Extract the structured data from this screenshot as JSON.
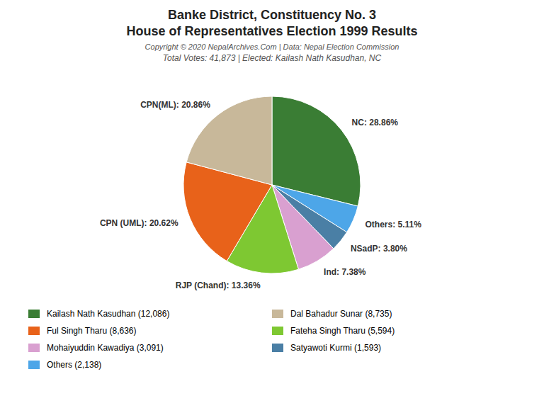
{
  "chart_data": {
    "type": "pie",
    "title": [
      "Banke District, Constituency No. 3",
      "House of Representatives Election 1999 Results"
    ],
    "annotations": [
      "Copyright © 2020 NepalArchives.Com | Data: Nepal Election Commission"
    ],
    "subtitle": "Total Votes: 41,873 | Elected: Kailash Nath Kasudhan, NC",
    "values": [
      28.86,
      5.11,
      3.8,
      7.38,
      13.36,
      20.62,
      20.86
    ],
    "value_labels": [
      "NC: 28.86%",
      "Others: 5.11%",
      "NSadP: 3.80%",
      "Ind: 7.38%",
      "RJP (Chand): 13.36%",
      "CPN (UML): 20.62%",
      "CPN(ML): 20.86%"
    ],
    "colors": [
      "#3a7d34",
      "#4da6e8",
      "#4a7fa5",
      "#d9a0d0",
      "#7ec832",
      "#e8621a",
      "#c8b89a"
    ],
    "data_labels": true,
    "legend": "bottom",
    "legend_entries": [
      {
        "label": "Kailash Nath Kasudhan (12,086)",
        "color": "#3a7d34"
      },
      {
        "label": "Ful Singh Tharu (8,636)",
        "color": "#e8621a"
      },
      {
        "label": "Mohaiyuddin Kawadiya (3,091)",
        "color": "#d9a0d0"
      },
      {
        "label": "Others (2,138)",
        "color": "#4da6e8"
      },
      {
        "label": "Dal Bahadur Sunar (8,735)",
        "color": "#c8b89a"
      },
      {
        "label": "Fateha Singh Tharu (5,594)",
        "color": "#7ec832"
      },
      {
        "label": "Satyawoti Kurmi (1,593)",
        "color": "#4a7fa5"
      }
    ]
  }
}
